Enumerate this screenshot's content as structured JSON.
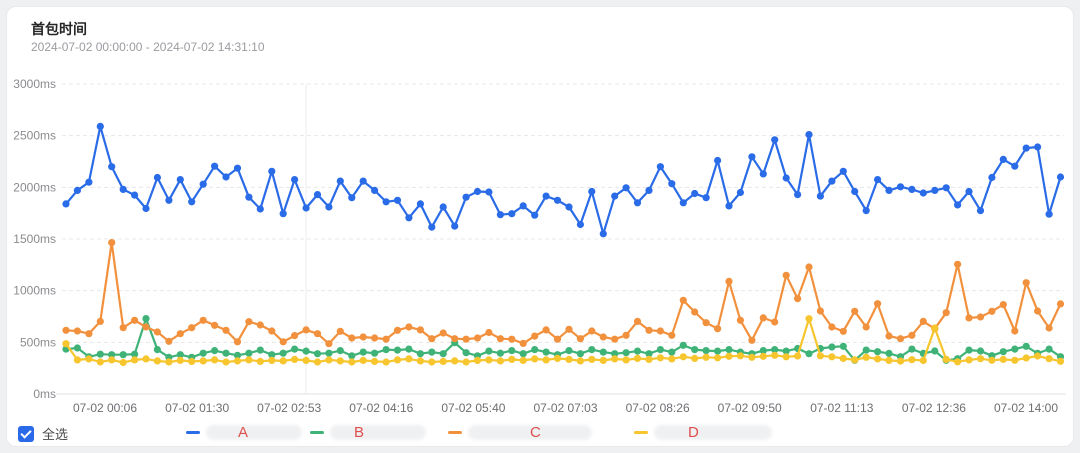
{
  "header": {
    "title": "首包时间",
    "time_range": "2024-07-02 00:00:00 - 2024-07-02 14:31:10"
  },
  "legend": {
    "select_all_label": "全选",
    "letter_color": "#DE4F4E",
    "items": [
      {
        "letter": "A",
        "color": "#2A6BE8"
      },
      {
        "letter": "B",
        "color": "#3FB377"
      },
      {
        "letter": "C",
        "color": "#F2913D"
      },
      {
        "letter": "D",
        "color": "#F7C52D"
      }
    ]
  },
  "chart_data": {
    "type": "line",
    "title": "首包时间",
    "unit": "ms",
    "ylim": [
      0,
      3000
    ],
    "y_tick_values": [
      0,
      500,
      1000,
      1500,
      2000,
      2500,
      3000
    ],
    "y_tick_labels": [
      "0ms",
      "500ms",
      "1000ms",
      "1500ms",
      "2000ms",
      "2500ms",
      "3000ms"
    ],
    "x_tick_labels": [
      "07-02 00:06",
      "07-02 01:30",
      "07-02 02:53",
      "07-02 04:16",
      "07-02 05:40",
      "07-02 07:03",
      "07-02 08:26",
      "07-02 09:50",
      "07-02 11:13",
      "07-02 12:36",
      "07-02 14:00"
    ],
    "grid": true,
    "legend_position": "bottom",
    "colors": {
      "grid": "#e8e8ea",
      "axis": "#e2e2e6",
      "y_label": "#8b8b8f",
      "x_label": "#6e6e73"
    },
    "series": [
      {
        "name": "A",
        "color": "#2A6BE8",
        "values": [
          1840,
          1970,
          2050,
          2590,
          2200,
          1980,
          1925,
          1795,
          2095,
          1875,
          2075,
          1860,
          2030,
          2205,
          2100,
          2185,
          1905,
          1790,
          2155,
          1745,
          2075,
          1800,
          1930,
          1810,
          2060,
          1900,
          2060,
          1970,
          1860,
          1875,
          1705,
          1840,
          1615,
          1810,
          1625,
          1905,
          1960,
          1955,
          1735,
          1745,
          1820,
          1730,
          1915,
          1875,
          1810,
          1640,
          1960,
          1550,
          1915,
          1995,
          1850,
          1970,
          2200,
          2035,
          1850,
          1940,
          1900,
          2260,
          1820,
          1950,
          2295,
          2130,
          2460,
          2090,
          1930,
          2510,
          1915,
          2060,
          2155,
          1960,
          1775,
          2075,
          1970,
          2005,
          1980,
          1945,
          1970,
          1995,
          1830,
          1960,
          1775,
          2095,
          2270,
          2205,
          2380,
          2390,
          1740,
          2100
        ]
      },
      {
        "name": "B",
        "color": "#3FB377",
        "values": [
          435,
          445,
          360,
          385,
          380,
          380,
          385,
          730,
          430,
          355,
          380,
          355,
          395,
          420,
          395,
          375,
          395,
          425,
          380,
          395,
          435,
          415,
          390,
          395,
          420,
          370,
          405,
          395,
          430,
          425,
          435,
          390,
          405,
          390,
          496,
          400,
          370,
          415,
          395,
          420,
          390,
          430,
          405,
          380,
          420,
          390,
          430,
          405,
          390,
          400,
          415,
          390,
          430,
          405,
          471,
          430,
          420,
          415,
          430,
          405,
          390,
          420,
          430,
          415,
          440,
          390,
          440,
          455,
          462,
          326,
          425,
          409,
          393,
          361,
          435,
          393,
          416,
          326,
          342,
          425,
          416,
          371,
          409,
          435,
          462,
          393,
          435,
          361
        ]
      },
      {
        "name": "C",
        "color": "#F2913D",
        "values": [
          616,
          610,
          584,
          703,
          1465,
          642,
          713,
          648,
          600,
          510,
          584,
          642,
          713,
          665,
          616,
          505,
          700,
          668,
          610,
          505,
          565,
          620,
          584,
          487,
          607,
          542,
          552,
          542,
          530,
          616,
          648,
          620,
          535,
          590,
          535,
          530,
          542,
          595,
          535,
          530,
          490,
          560,
          620,
          530,
          626,
          535,
          610,
          552,
          530,
          568,
          703,
          616,
          610,
          568,
          907,
          794,
          690,
          632,
          1090,
          713,
          520,
          736,
          697,
          1149,
          923,
          1229,
          803,
          648,
          607,
          800,
          648,
          874,
          561,
          535,
          568,
          703,
          632,
          787,
          1255,
          736,
          745,
          800,
          865,
          610,
          1077,
          803,
          639,
          872
        ]
      },
      {
        "name": "D",
        "color": "#F7C52D",
        "values": [
          487,
          330,
          340,
          310,
          330,
          305,
          330,
          340,
          320,
          310,
          325,
          315,
          320,
          330,
          310,
          320,
          330,
          315,
          325,
          320,
          335,
          325,
          310,
          330,
          320,
          310,
          325,
          315,
          310,
          330,
          340,
          320,
          310,
          315,
          320,
          310,
          325,
          330,
          320,
          335,
          325,
          340,
          330,
          345,
          335,
          320,
          335,
          325,
          340,
          330,
          345,
          335,
          350,
          340,
          360,
          345,
          355,
          350,
          365,
          370,
          355,
          365,
          375,
          360,
          368,
          729,
          370,
          360,
          345,
          330,
          355,
          340,
          325,
          318,
          332,
          324,
          639,
          335,
          312,
          330,
          342,
          326,
          335,
          326,
          348,
          368,
          342,
          316
        ]
      }
    ]
  }
}
